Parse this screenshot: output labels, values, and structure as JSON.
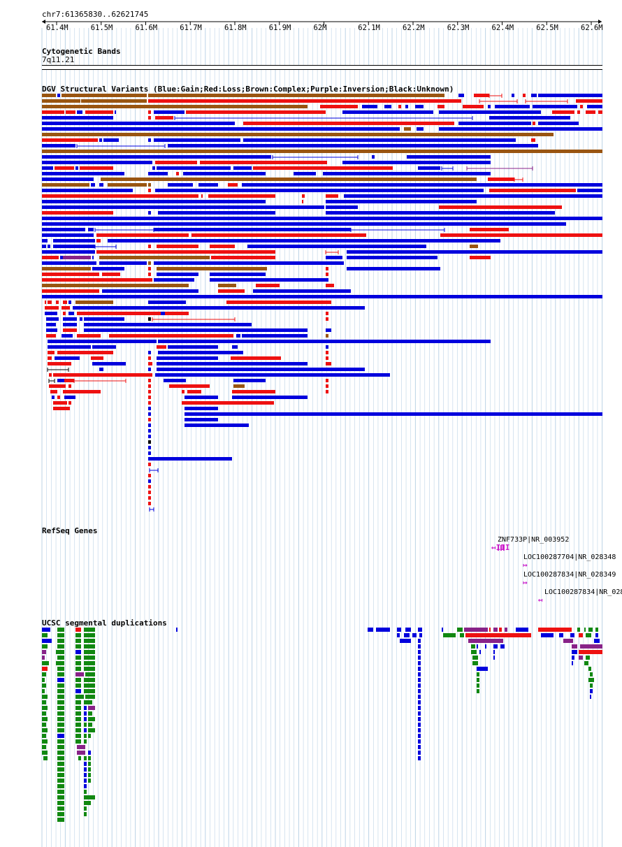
{
  "ruler": {
    "position": "chr7:61365830..62621745",
    "ticks": [
      "61.4M",
      "61.5M",
      "61.6M",
      "61.7M",
      "61.8M",
      "61.9M",
      "62M",
      "62.1M",
      "62.2M",
      "62.3M",
      "62.4M",
      "62.5M",
      "62.6M"
    ]
  },
  "tracks": {
    "cytoband": {
      "title": "Cytogenetic Bands",
      "band": "7q11.21"
    },
    "dgv": {
      "title": "DGV Structural Variants (Blue:Gain;Red:Loss;Brown:Complex;Purple:Inversion;Black:Unknown)"
    },
    "refseq": {
      "title": "RefSeq Genes",
      "genes": [
        {
          "label": "ZNF733P|NR_003952",
          "strand": "-",
          "arrow": "↤III"
        },
        {
          "label": "LOC100287704|NR_028348",
          "strand": "+",
          "arrow": "↦"
        },
        {
          "label": "LOC100287834|NR_028349",
          "strand": "+",
          "arrow": "↦"
        },
        {
          "label": "LOC100287834|NR_028",
          "strand": "-",
          "arrow": "↤"
        }
      ]
    },
    "segdup": {
      "title": "UCSC segmental duplications"
    }
  },
  "colors": {
    "gain": "#0000dd",
    "loss": "#ee1111",
    "complex": "#995511",
    "inversion": "#882288",
    "unknown": "#000000",
    "segdup_green": "#118811",
    "grid": "#bcd3e6",
    "gene": "#cc22cc"
  }
}
